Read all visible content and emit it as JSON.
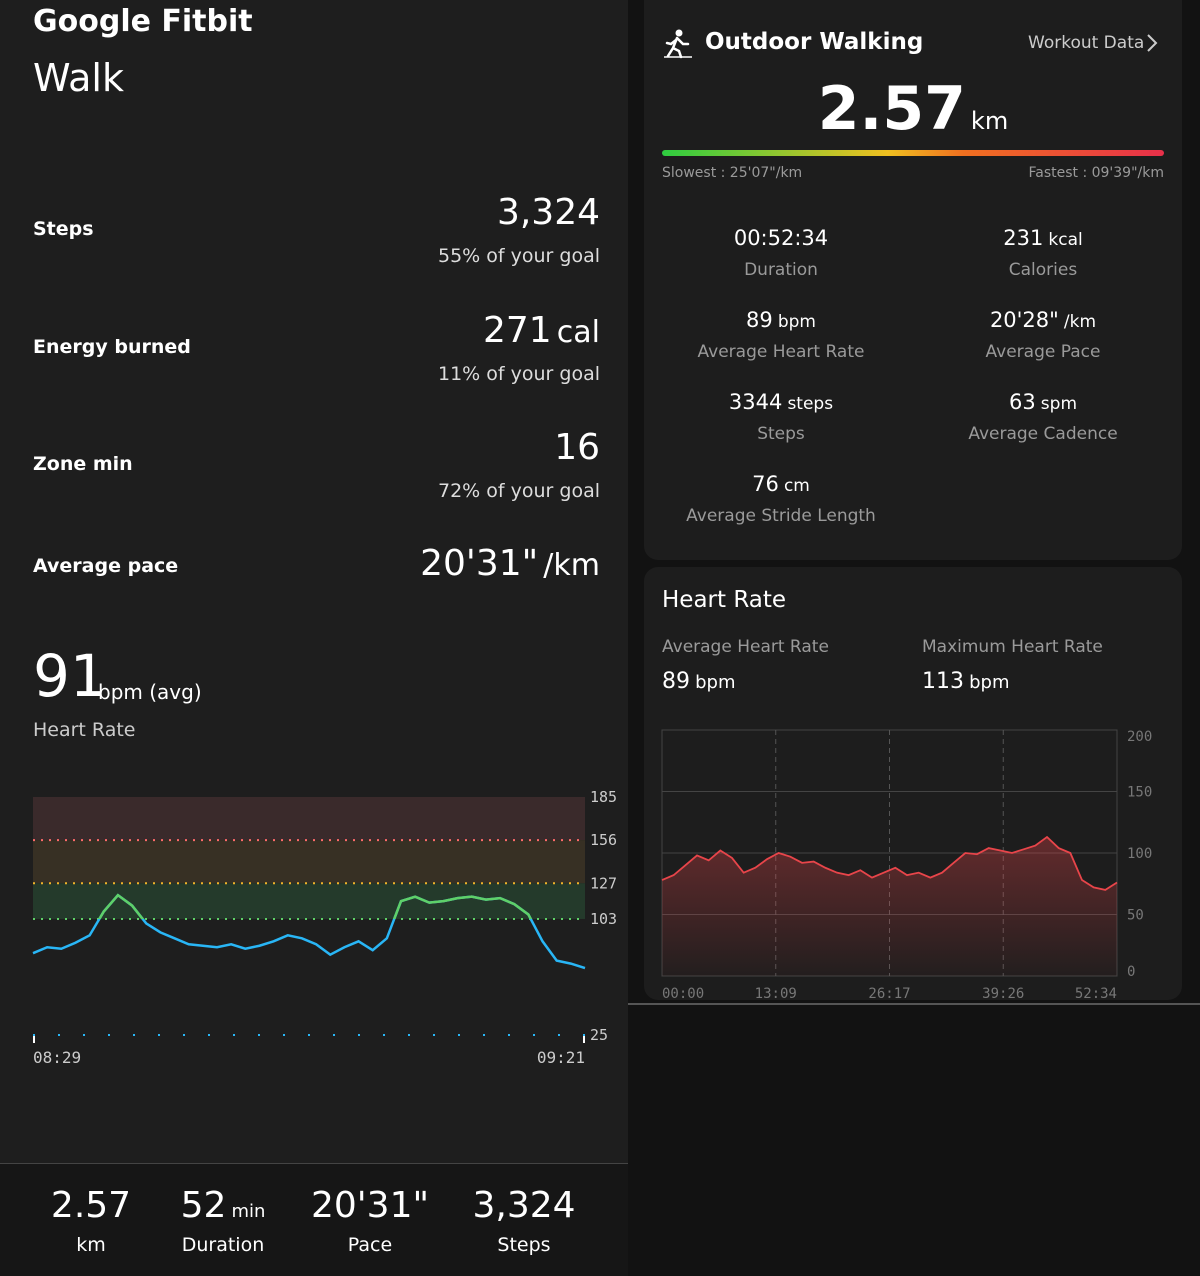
{
  "left": {
    "app": "Google Fitbit",
    "title": "Walk",
    "metrics": [
      {
        "label": "Steps",
        "value": "3,324",
        "goal": "55% of your goal"
      },
      {
        "label": "Energy burned",
        "value": "271",
        "unit": "cal",
        "goal": "11% of your goal"
      },
      {
        "label": "Zone min",
        "value": "16",
        "goal": "72% of your goal"
      },
      {
        "label": "Average pace",
        "value": "20'31\"",
        "unit": "/km"
      }
    ],
    "heart": {
      "value": "91",
      "unit": "bpm (avg)",
      "label": "Heart Rate"
    },
    "heart_chart": {
      "type": "line",
      "color": "#29b6f6",
      "zone_color": "#5fd068",
      "ylim": [
        25,
        185
      ],
      "yticks": [
        185,
        156,
        127,
        103,
        25
      ],
      "band_colors": [
        "#3a2a2b",
        "#373024",
        "#243a2b"
      ],
      "x_labels": [
        "08:29",
        "09:21"
      ],
      "values": [
        80,
        84,
        83,
        87,
        92,
        108,
        119,
        112,
        100,
        94,
        90,
        86,
        85,
        84,
        86,
        83,
        85,
        88,
        92,
        90,
        86,
        79,
        84,
        88,
        82,
        90,
        115,
        118,
        114,
        115,
        117,
        118,
        116,
        117,
        113,
        106,
        88,
        75,
        73,
        70
      ]
    },
    "summary": [
      {
        "value": "2.57",
        "label": "km"
      },
      {
        "value": "52",
        "unit": "min",
        "label": "Duration"
      },
      {
        "value": "20'31\"",
        "label": "Pace"
      },
      {
        "value": "3,324",
        "label": "Steps"
      }
    ]
  },
  "right": {
    "title": "Outdoor Walking",
    "link": "Workout Data",
    "distance": {
      "value": "2.57",
      "unit": "km"
    },
    "slowest": "Slowest : 25'07\"/km",
    "fastest": "Fastest : 09'39\"/km",
    "stats": [
      {
        "value": "00:52:34",
        "label": "Duration"
      },
      {
        "value": "231",
        "unit": "kcal",
        "label": "Calories"
      },
      {
        "value": "89",
        "unit": "bpm",
        "label": "Average Heart Rate"
      },
      {
        "value": "20'28\"",
        "unit": "/km",
        "label": "Average Pace"
      },
      {
        "value": "3344",
        "unit": "steps",
        "label": "Steps"
      },
      {
        "value": "63",
        "unit": "spm",
        "label": "Average Cadence"
      },
      {
        "value": "76",
        "unit": "cm",
        "label": "Average Stride Length"
      }
    ],
    "heart_card": {
      "title": "Heart Rate",
      "average": {
        "label": "Average Heart Rate",
        "value": "89",
        "unit": "bpm"
      },
      "maximum": {
        "label": "Maximum Heart Rate",
        "value": "113",
        "unit": "bpm"
      },
      "chart": {
        "type": "line",
        "color": "#e8454a",
        "ylim": [
          0,
          200
        ],
        "yticks": [
          200,
          150,
          100,
          50,
          0
        ],
        "x_labels": [
          "00:00",
          "13:09",
          "26:17",
          "39:26",
          "52:34"
        ],
        "values": [
          78,
          82,
          90,
          98,
          94,
          102,
          96,
          84,
          88,
          95,
          100,
          97,
          92,
          93,
          88,
          84,
          82,
          86,
          80,
          84,
          88,
          82,
          84,
          80,
          84,
          92,
          100,
          99,
          104,
          102,
          100,
          103,
          106,
          113,
          104,
          100,
          78,
          72,
          70,
          76
        ]
      }
    }
  }
}
